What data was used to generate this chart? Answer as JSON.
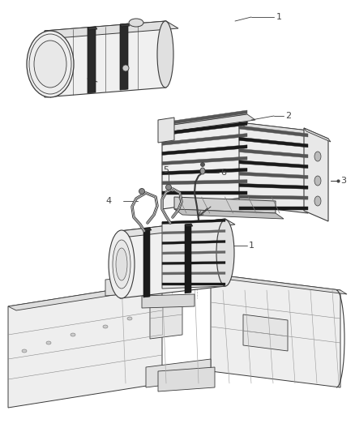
{
  "bg": "#ffffff",
  "lc": "#3a3a3a",
  "lc_light": "#888888",
  "lc_mid": "#555555",
  "fill_light": "#f2f2f2",
  "fill_mid": "#e0e0e0",
  "fill_dark": "#c8c8c8",
  "fill_black": "#222222",
  "label_color": "#555555",
  "fig_w": 4.38,
  "fig_h": 5.33,
  "dpi": 100
}
